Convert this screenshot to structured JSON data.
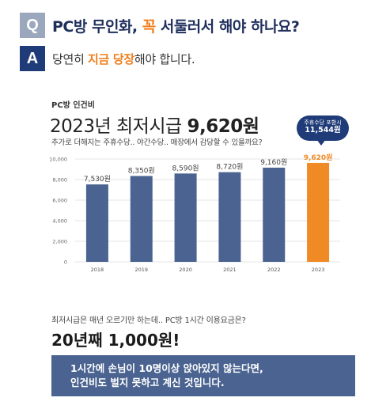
{
  "qa": {
    "q_label": "Q",
    "a_label": "A",
    "question_pre": "PC방 무인화, ",
    "question_hl": "꼭",
    "question_post": " 서둘러서 해야 하나요?",
    "answer_pre": "당연히 ",
    "answer_hl": "지금 당장",
    "answer_post": "해야 합니다."
  },
  "section": {
    "label": "PC방 인건비",
    "title_pre": "2023년 최저시급 ",
    "title_value": "9,620원",
    "description": "추가로 더해지는 주휴수당.. 야간수당.. 매장에서 감당할 수 있을까요?"
  },
  "callout": {
    "line1": "주휴수당 포함시",
    "line2": "11,544원"
  },
  "chart_data": {
    "type": "bar",
    "categories": [
      "2018",
      "2019",
      "2020",
      "2021",
      "2022",
      "2023"
    ],
    "values": [
      7530,
      8350,
      8590,
      8720,
      9160,
      9620
    ],
    "value_labels": [
      "7,530원",
      "8,350원",
      "8,590원",
      "8,720원",
      "9,160원",
      "9,620원"
    ],
    "y_ticks": [
      0,
      2000,
      4000,
      6000,
      8000,
      10000
    ],
    "y_tick_labels": [
      "0",
      "2,000",
      "4,000",
      "6,000",
      "8,000",
      "10,000"
    ],
    "ylim": [
      0,
      10000
    ],
    "grid": true,
    "bar_color": "#4a6390",
    "highlight_color": "#f08a24",
    "highlight_index": 5
  },
  "bottom": {
    "question": "최저시급은 매년 오르기만 하는데.. PC방 1시간 이용요금은?",
    "answer": "20년째 1,000원!",
    "banner_line1": "1시간에 손님이 10명이상 앉아있지 않는다면,",
    "banner_line2": "인건비도 벌지 못하고 계신 것입니다."
  }
}
